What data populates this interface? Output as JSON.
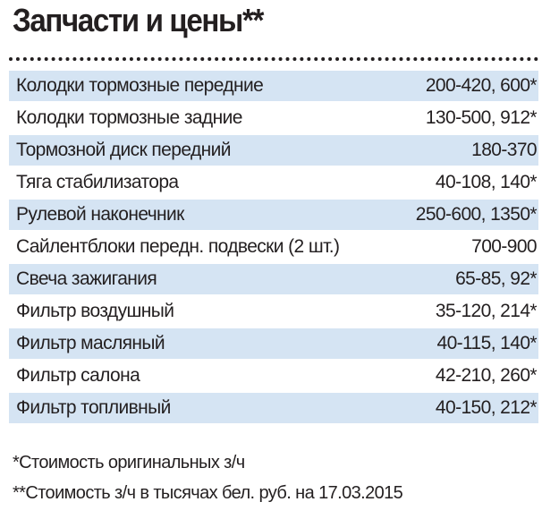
{
  "header": {
    "title": "Запчасти и цены**"
  },
  "table": {
    "rows": [
      [
        "Колодки тормозные передние",
        "200-420, 600*"
      ],
      [
        "Колодки тормозные задние",
        "130-500, 912*"
      ],
      [
        "Тормозной диск передний",
        "180-370"
      ],
      [
        "Тяга стабилизатора",
        "40-108, 140*"
      ],
      [
        "Рулевой наконечник",
        "250-600, 1350*"
      ],
      [
        "Сайлентблоки передн. подвески (2 шт.)",
        "700-900"
      ],
      [
        "Свеча зажигания",
        "65-85, 92*"
      ],
      [
        "Фильтр воздушный",
        "35-120, 214*"
      ],
      [
        "Фильтр масляный",
        "40-115, 140*"
      ],
      [
        "Фильтр салона",
        "42-210, 260*"
      ],
      [
        "Фильтр топливный",
        "40-150, 212*"
      ]
    ]
  },
  "footnotes": [
    "*Стоимость оригинальных з/ч",
    "**Стоимость з/ч в тысячах бел. руб. на 17.03.2015"
  ]
}
